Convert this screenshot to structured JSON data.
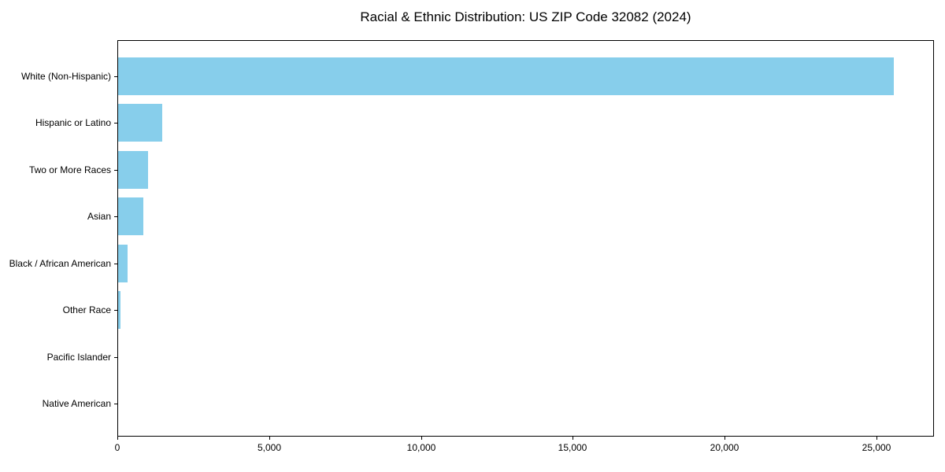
{
  "chart_data": {
    "type": "bar",
    "orientation": "horizontal",
    "title": "Racial & Ethnic Distribution: US ZIP Code 32082 (2024)",
    "categories": [
      "White (Non-Hispanic)",
      "Hispanic or Latino",
      "Two or More Races",
      "Asian",
      "Black / African American",
      "Other Race",
      "Pacific Islander",
      "Native American"
    ],
    "values": [
      25600,
      1450,
      975,
      840,
      300,
      85,
      0,
      0
    ],
    "xlabel": "",
    "ylabel": "",
    "xlim": [
      0,
      26900
    ],
    "x_ticks": [
      0,
      5000,
      10000,
      15000,
      20000,
      25000
    ],
    "x_tick_labels": [
      "0",
      "5,000",
      "10,000",
      "15,000",
      "20,000",
      "25,000"
    ],
    "bar_color": "#87CEEB",
    "axis_color": "#000000",
    "grid": false,
    "legend": null
  }
}
